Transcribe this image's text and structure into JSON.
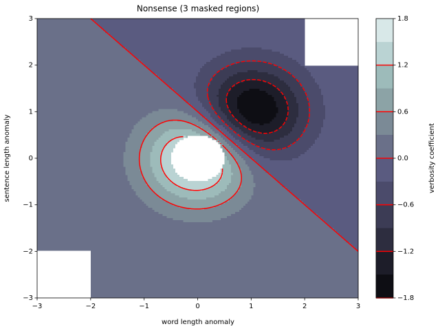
{
  "chart_data": {
    "type": "contourf",
    "title": "Nonsense (3 masked regions)",
    "x_label": "word length anomaly",
    "y_label": "sentence length anomaly",
    "colorbar_label": "verbosity coefficient",
    "xlim": [
      -3,
      3
    ],
    "ylim": [
      -3,
      3
    ],
    "xticks": [
      {
        "value": -3,
        "label": "−3"
      },
      {
        "value": -2,
        "label": "−2"
      },
      {
        "value": -1,
        "label": "−1"
      },
      0,
      1,
      2,
      3
    ],
    "yticks": [
      {
        "value": -3,
        "label": "−3"
      },
      {
        "value": -2,
        "label": "−2"
      },
      {
        "value": -1,
        "label": "−1"
      },
      0,
      1,
      2,
      3
    ],
    "levels": [
      -1.8,
      -1.5,
      -1.2,
      -0.9,
      -0.6,
      -0.3,
      0,
      0.3,
      0.6,
      0.9,
      1.2,
      1.5,
      1.8
    ],
    "colors": [
      "#0e0e14",
      "#1d1d29",
      "#2d2d3f",
      "#3c3c55",
      "#4b4b6b",
      "#5a5b80",
      "#6a7089",
      "#7b8a96",
      "#8ca3a6",
      "#9dbbba",
      "#bad3d3",
      "#d8e8e8",
      "#f2f8f8"
    ],
    "line_levels": [
      -1.8,
      -1.2,
      -0.6,
      0,
      0.6,
      1.2
    ],
    "line_color": "#ff0000",
    "colorbar_ticks": [
      {
        "value": -1.8,
        "label": "−1.8"
      },
      {
        "value": -1.2,
        "label": "−1.2"
      },
      {
        "value": -0.6,
        "label": "−0.6"
      },
      {
        "value": 0,
        "label": "0.0"
      },
      0.6,
      1.2,
      1.8
    ]
  }
}
